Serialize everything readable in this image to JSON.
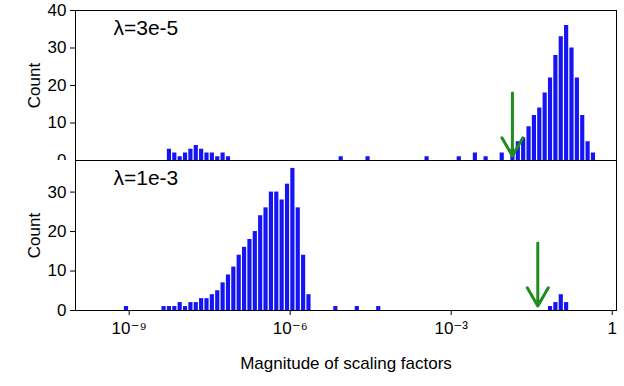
{
  "chart_data": [
    {
      "type": "histogram",
      "title": "λ=3e-5",
      "ylabel": "Count",
      "log": "x",
      "tick_labels": "y",
      "color": "#1414f5",
      "xlim": [
        1e-10,
        1.2
      ],
      "xticks": [
        {
          "value": 1e-09,
          "label": "10⁻⁹"
        },
        {
          "value": 1e-06,
          "label": "10⁻⁶"
        },
        {
          "value": 0.001,
          "label": "10⁻³"
        },
        1
      ],
      "ylim": [
        0,
        40
      ],
      "yticks": [
        0,
        10,
        20,
        30,
        40
      ],
      "arrow_x": 0.0138,
      "bins": [
        1e-10,
        1.259e-10,
        1.585e-10,
        1.995e-10,
        2.512e-10,
        3.162e-10,
        3.981e-10,
        5.012e-10,
        6.31e-10,
        7.943e-10,
        1e-09,
        1.259e-09,
        1.585e-09,
        1.995e-09,
        2.512e-09,
        3.162e-09,
        3.981e-09,
        5.012e-09,
        6.31e-09,
        7.943e-09,
        1e-08,
        1.259e-08,
        1.585e-08,
        1.995e-08,
        2.512e-08,
        3.162e-08,
        3.981e-08,
        5.012e-08,
        6.31e-08,
        7.943e-08,
        1e-07,
        1.259e-07,
        1.585e-07,
        1.995e-07,
        2.512e-07,
        3.162e-07,
        3.981e-07,
        5.012e-07,
        6.31e-07,
        7.943e-07,
        1e-06,
        1.259e-06,
        1.585e-06,
        1.995e-06,
        2.512e-06,
        3.162e-06,
        3.981e-06,
        5.012e-06,
        6.31e-06,
        7.943e-06,
        1e-05,
        1.259e-05,
        1.585e-05,
        1.995e-05,
        2.512e-05,
        3.162e-05,
        3.981e-05,
        5.012e-05,
        6.31e-05,
        7.943e-05,
        0.0001,
        0.0001259,
        0.0001585,
        0.0001995,
        0.0002512,
        0.0003162,
        0.0003981,
        0.0005012,
        0.000631,
        0.0007943,
        0.001,
        0.001259,
        0.001585,
        0.001995,
        0.002512,
        0.003162,
        0.003981,
        0.005012,
        0.00631,
        0.007943,
        0.01,
        0.01259,
        0.01585,
        0.01995,
        0.02512,
        0.03162,
        0.03981,
        0.05012,
        0.0631,
        0.07943,
        0.1,
        0.1259,
        0.1585,
        0.1995,
        0.2512,
        0.3162,
        0.3981,
        0.5012,
        0.631,
        0.7943,
        1
      ],
      "values": [
        0,
        0,
        0,
        0,
        0,
        0,
        0,
        0,
        0,
        0,
        0,
        0,
        0,
        0,
        0,
        0,
        0,
        3,
        2,
        1,
        2,
        3,
        4,
        3,
        2,
        2,
        1,
        2,
        1,
        0,
        0,
        0,
        0,
        0,
        0,
        0,
        0,
        0,
        0,
        0,
        0,
        0,
        0,
        0,
        0,
        0,
        0,
        0,
        0,
        1,
        0,
        0,
        0,
        0,
        1,
        0,
        0,
        0,
        0,
        0,
        0,
        0,
        0,
        0,
        0,
        1,
        0,
        0,
        0,
        0,
        0,
        1,
        0,
        0,
        2,
        0,
        1,
        0,
        0,
        2,
        0,
        3,
        5,
        6,
        9,
        12,
        14,
        18,
        22,
        28,
        33,
        36,
        30,
        22,
        12,
        5,
        2,
        0,
        0,
        0
      ]
    },
    {
      "type": "histogram",
      "title": "λ=1e-3",
      "ylabel": "Count",
      "xlabel": "Magnitude of scaling factors",
      "log": "x",
      "color": "#1414f5",
      "xlim": [
        1e-10,
        1.2
      ],
      "xticks": [
        {
          "value": 1e-09,
          "label": "10⁻⁹"
        },
        {
          "value": 1e-06,
          "label": "10⁻⁶"
        },
        {
          "value": 0.001,
          "label": "10⁻³"
        },
        1
      ],
      "ylim": [
        0,
        38
      ],
      "yticks": [
        0,
        10,
        20,
        30
      ],
      "arrow_x": 0.041,
      "bins": [
        1e-10,
        1.259e-10,
        1.585e-10,
        1.995e-10,
        2.512e-10,
        3.162e-10,
        3.981e-10,
        5.012e-10,
        6.31e-10,
        7.943e-10,
        1e-09,
        1.259e-09,
        1.585e-09,
        1.995e-09,
        2.512e-09,
        3.162e-09,
        3.981e-09,
        5.012e-09,
        6.31e-09,
        7.943e-09,
        1e-08,
        1.259e-08,
        1.585e-08,
        1.995e-08,
        2.512e-08,
        3.162e-08,
        3.981e-08,
        5.012e-08,
        6.31e-08,
        7.943e-08,
        1e-07,
        1.259e-07,
        1.585e-07,
        1.995e-07,
        2.512e-07,
        3.162e-07,
        3.981e-07,
        5.012e-07,
        6.31e-07,
        7.943e-07,
        1e-06,
        1.259e-06,
        1.585e-06,
        1.995e-06,
        2.512e-06,
        3.162e-06,
        3.981e-06,
        5.012e-06,
        6.31e-06,
        7.943e-06,
        1e-05,
        1.259e-05,
        1.585e-05,
        1.995e-05,
        2.512e-05,
        3.162e-05,
        3.981e-05,
        5.012e-05,
        6.31e-05,
        7.943e-05,
        0.0001,
        0.0001259,
        0.0001585,
        0.0001995,
        0.0002512,
        0.0003162,
        0.0003981,
        0.0005012,
        0.000631,
        0.0007943,
        0.001,
        0.001259,
        0.001585,
        0.001995,
        0.002512,
        0.003162,
        0.003981,
        0.005012,
        0.00631,
        0.007943,
        0.01,
        0.01259,
        0.01585,
        0.01995,
        0.02512,
        0.03162,
        0.03981,
        0.05012,
        0.0631,
        0.07943,
        0.1,
        0.1259,
        0.1585,
        0.1995,
        0.2512,
        0.3162,
        0.3981,
        0.5012,
        0.631,
        0.7943,
        1
      ],
      "values": [
        0,
        0,
        0,
        0,
        0,
        0,
        0,
        0,
        0,
        1,
        0,
        0,
        0,
        0,
        0,
        0,
        1,
        1,
        1,
        2,
        1,
        2,
        2,
        3,
        3,
        4,
        5,
        7,
        9,
        11,
        14,
        16,
        18,
        20,
        24,
        26,
        30,
        30,
        28,
        32,
        36,
        26,
        14,
        4,
        0,
        0,
        0,
        0,
        1,
        0,
        0,
        0,
        1,
        0,
        0,
        0,
        1,
        0,
        0,
        0,
        0,
        0,
        0,
        0,
        0,
        0,
        0,
        0,
        0,
        0,
        0,
        0,
        0,
        0,
        0,
        0,
        0,
        0,
        0,
        0,
        0,
        0,
        0,
        0,
        0,
        0,
        0,
        0,
        1,
        2,
        4,
        2,
        0,
        0,
        0,
        0,
        0,
        0,
        0,
        0
      ]
    }
  ]
}
